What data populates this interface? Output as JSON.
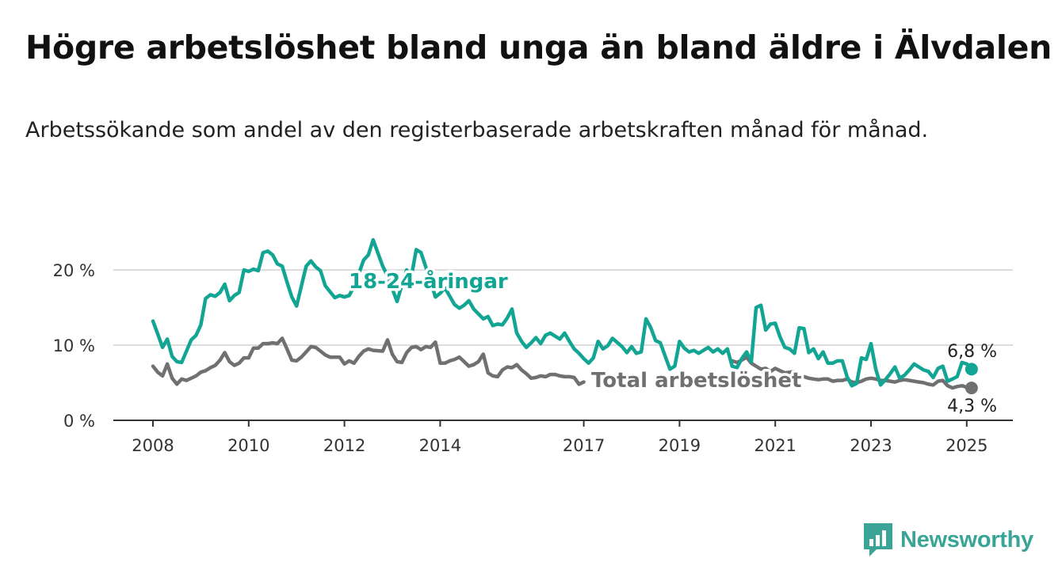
{
  "title": "Högre arbetslöshet bland unga än bland äldre i Älvdalen",
  "subtitle": "Arbetssökande som andel av den registerbaserade arbetskraften månad för månad.",
  "brand": "Newsworthy",
  "colors": {
    "young": "#12a594",
    "total": "#707070",
    "grid": "#dddddd",
    "axis": "#333333",
    "brand": "#3aa597"
  },
  "chart_data": {
    "type": "line",
    "title": "Högre arbetslöshet bland unga än bland äldre i Älvdalen",
    "subtitle": "Arbetssökande som andel av den registerbaserade arbetskraften månad för månad.",
    "xlabel": "",
    "ylabel": "",
    "xlim": [
      2008,
      2025.6
    ],
    "ylim": [
      0,
      20
    ],
    "x_ticks": [
      2008,
      2010,
      2012,
      2014,
      2017,
      2019,
      2021,
      2023,
      2025
    ],
    "y_ticks": [
      {
        "value": 0,
        "label": "0 %"
      },
      {
        "value": 10,
        "label": "10 %"
      },
      {
        "value": 20,
        "label": "20 %"
      }
    ],
    "grid": "horizontal",
    "end_labels": {
      "young": "6,8 %",
      "total": "4,3 %"
    },
    "series": [
      {
        "name": "18-24-åringar",
        "x": [
          2008.0,
          2008.1,
          2008.2,
          2008.3,
          2008.4,
          2008.5,
          2008.6,
          2008.8,
          2008.9,
          2009.0,
          2009.1,
          2009.2,
          2009.3,
          2009.4,
          2009.5,
          2009.6,
          2009.7,
          2009.8,
          2009.9,
          2010.0,
          2010.1,
          2010.2,
          2010.3,
          2010.4,
          2010.5,
          2010.6,
          2010.7,
          2010.8,
          2010.9,
          2011.0,
          2011.2,
          2011.3,
          2011.4,
          2011.5,
          2011.6,
          2011.8,
          2011.9,
          2012.0,
          2012.1,
          2012.2,
          2012.3,
          2012.4,
          2012.5,
          2012.6,
          2012.8,
          2012.9,
          2013.0,
          2013.1,
          2013.2,
          2013.3,
          2013.4,
          2013.5,
          2013.6,
          2013.8,
          2013.9,
          2014.0,
          2014.1,
          2014.2,
          2014.3,
          2014.4,
          2014.5,
          2014.6,
          2014.7,
          2014.9,
          2015.0,
          2015.1,
          2015.2,
          2015.3,
          2015.4,
          2015.5,
          2015.6,
          2015.7,
          2015.8,
          2015.9,
          2016.0,
          2016.1,
          2016.2,
          2016.3,
          2016.5,
          2016.6,
          2016.7,
          2016.8,
          2016.9,
          2017.0,
          2017.1,
          2017.2,
          2017.3,
          2017.4,
          2017.5,
          2017.6,
          2017.8,
          2017.9,
          2018.0,
          2018.1,
          2018.2,
          2018.3,
          2018.4,
          2018.5,
          2018.6,
          2018.8,
          2018.9,
          2019.0,
          2019.1,
          2019.2,
          2019.3,
          2019.4,
          2019.6,
          2019.7,
          2019.8,
          2019.9,
          2020.0,
          2020.1,
          2020.2,
          2020.3,
          2020.4,
          2020.5,
          2020.6,
          2020.7,
          2020.8,
          2020.9,
          2021.0,
          2021.1,
          2021.2,
          2021.3,
          2021.4,
          2021.5,
          2021.6,
          2021.7,
          2021.8,
          2021.9,
          2022.0,
          2022.1,
          2022.2,
          2022.3,
          2022.4,
          2022.5,
          2022.6,
          2022.7,
          2022.8,
          2022.9,
          2023.0,
          2023.1,
          2023.2,
          2023.3,
          2023.4,
          2023.5,
          2023.6,
          2023.7,
          2023.8,
          2023.9,
          2024.0,
          2024.1,
          2024.2,
          2024.3,
          2024.4,
          2024.5,
          2024.6,
          2024.7,
          2024.8,
          2024.9,
          2025.0,
          2025.1
        ],
        "values": [
          13.2,
          11.5,
          9.7,
          10.8,
          8.5,
          7.8,
          7.7,
          10.7,
          11.3,
          12.7,
          16.2,
          16.7,
          16.5,
          17.0,
          18.1,
          15.9,
          16.6,
          17.0,
          20.0,
          19.8,
          20.1,
          19.9,
          22.3,
          22.5,
          22.0,
          20.8,
          20.5,
          18.4,
          16.4,
          15.2,
          20.5,
          21.2,
          20.4,
          19.9,
          17.9,
          16.3,
          16.6,
          16.4,
          16.6,
          17.8,
          19.5,
          21.3,
          22.0,
          24.0,
          20.5,
          19.2,
          17.5,
          15.8,
          18.0,
          20.0,
          19.2,
          22.7,
          22.3,
          18.5,
          16.4,
          16.9,
          17.6,
          16.5,
          15.4,
          14.9,
          15.3,
          15.9,
          14.8,
          13.5,
          13.8,
          12.6,
          12.8,
          12.7,
          13.6,
          14.8,
          11.6,
          10.5,
          9.7,
          10.3,
          11.0,
          10.2,
          11.3,
          11.6,
          10.8,
          11.6,
          10.5,
          9.5,
          8.9,
          8.2,
          7.6,
          8.3,
          10.5,
          9.5,
          9.9,
          10.9,
          9.8,
          9.0,
          9.8,
          8.9,
          9.1,
          13.5,
          12.3,
          10.6,
          10.3,
          6.8,
          7.2,
          10.5,
          9.6,
          9.1,
          9.3,
          8.9,
          9.7,
          9.1,
          9.5,
          8.9,
          9.5,
          7.2,
          7.0,
          8.2,
          9.1,
          7.8,
          15.0,
          15.3,
          12.0,
          12.8,
          12.9,
          11.1,
          9.7,
          9.5,
          8.9,
          12.3,
          12.2,
          9.0,
          9.5,
          8.2,
          9.1,
          7.6,
          7.6,
          7.9,
          7.9,
          5.8,
          4.6,
          4.9,
          8.3,
          8.1,
          10.2,
          6.8,
          4.7,
          5.4,
          6.2,
          7.1,
          5.6,
          6.0,
          6.7,
          7.5,
          7.1,
          6.7,
          6.5,
          5.7,
          6.9,
          7.2,
          5.2,
          5.5,
          5.8,
          7.7,
          7.5,
          6.8
        ]
      },
      {
        "name": "Total arbetslöshet",
        "x": [
          2008.0,
          2008.1,
          2008.2,
          2008.3,
          2008.4,
          2008.5,
          2008.6,
          2008.7,
          2008.9,
          2009.0,
          2009.1,
          2009.2,
          2009.3,
          2009.4,
          2009.5,
          2009.6,
          2009.7,
          2009.8,
          2009.9,
          2010.0,
          2010.1,
          2010.2,
          2010.3,
          2010.4,
          2010.5,
          2010.6,
          2010.7,
          2010.8,
          2010.9,
          2011.0,
          2011.1,
          2011.2,
          2011.3,
          2011.4,
          2011.5,
          2011.6,
          2011.7,
          2011.8,
          2011.9,
          2012.0,
          2012.1,
          2012.2,
          2012.3,
          2012.4,
          2012.5,
          2012.6,
          2012.8,
          2012.9,
          2013.0,
          2013.1,
          2013.2,
          2013.3,
          2013.4,
          2013.5,
          2013.6,
          2013.7,
          2013.8,
          2013.9,
          2014.0,
          2014.1,
          2014.2,
          2014.3,
          2014.4,
          2014.5,
          2014.6,
          2014.7,
          2014.8,
          2014.9,
          2015.0,
          2015.1,
          2015.2,
          2015.3,
          2015.4,
          2015.5,
          2015.6,
          2015.7,
          2015.8,
          2015.9,
          2016.0,
          2016.1,
          2016.2,
          2016.3,
          2016.4,
          2016.5,
          2016.6,
          2016.7,
          2016.8,
          2016.9,
          2017.0,
          2020.1,
          2020.2,
          2020.3,
          2020.4,
          2020.5,
          2020.6,
          2020.7,
          2020.8,
          2020.9,
          2021.0,
          2021.1,
          2021.2,
          2021.3,
          2021.4,
          2021.5,
          2021.6,
          2021.7,
          2021.8,
          2021.9,
          2022.0,
          2022.1,
          2022.2,
          2022.3,
          2022.4,
          2022.5,
          2022.6,
          2022.7,
          2022.8,
          2022.9,
          2023.0,
          2023.1,
          2023.2,
          2023.3,
          2023.4,
          2023.5,
          2023.6,
          2023.7,
          2023.8,
          2023.9,
          2024.0,
          2024.1,
          2024.2,
          2024.3,
          2024.4,
          2024.5,
          2024.6,
          2024.7,
          2024.8,
          2024.9,
          2025.0,
          2025.1
        ],
        "values": [
          7.2,
          6.4,
          5.9,
          7.5,
          5.6,
          4.8,
          5.5,
          5.3,
          5.9,
          6.4,
          6.6,
          7.0,
          7.3,
          8.0,
          9.0,
          7.8,
          7.3,
          7.6,
          8.3,
          8.3,
          9.6,
          9.6,
          10.2,
          10.2,
          10.3,
          10.2,
          10.9,
          9.5,
          8.0,
          7.9,
          8.4,
          9.1,
          9.8,
          9.7,
          9.2,
          8.7,
          8.4,
          8.4,
          8.4,
          7.5,
          7.9,
          7.6,
          8.5,
          9.2,
          9.5,
          9.3,
          9.2,
          10.7,
          8.8,
          7.8,
          7.7,
          9.0,
          9.7,
          9.8,
          9.4,
          9.8,
          9.7,
          10.4,
          7.6,
          7.6,
          7.9,
          8.1,
          8.4,
          7.8,
          7.2,
          7.4,
          7.8,
          8.8,
          6.3,
          5.9,
          5.8,
          6.7,
          7.1,
          7.0,
          7.4,
          6.7,
          6.2,
          5.6,
          5.7,
          5.9,
          5.8,
          6.1,
          6.1,
          5.9,
          5.8,
          5.8,
          5.7,
          4.8,
          5.1,
          7.9,
          7.7,
          8.0,
          8.4,
          7.6,
          7.2,
          6.8,
          6.9,
          6.5,
          6.9,
          6.6,
          6.3,
          6.4,
          6.5,
          5.9,
          5.8,
          5.6,
          5.5,
          5.4,
          5.5,
          5.5,
          5.2,
          5.3,
          5.3,
          5.5,
          5.1,
          5.0,
          5.2,
          5.5,
          5.6,
          5.5,
          5.3,
          5.3,
          5.2,
          5.1,
          5.3,
          5.4,
          5.3,
          5.2,
          5.1,
          5.0,
          4.8,
          4.7,
          5.2,
          5.3,
          4.6,
          4.3,
          4.5,
          4.6,
          4.4,
          4.3
        ]
      }
    ],
    "gaps": {
      "Total arbetslöshet": [
        [
          2017.0,
          2020.1
        ]
      ],
      "18-24-åringar": [
        [
          2018.2,
          2018.5
        ]
      ]
    }
  }
}
